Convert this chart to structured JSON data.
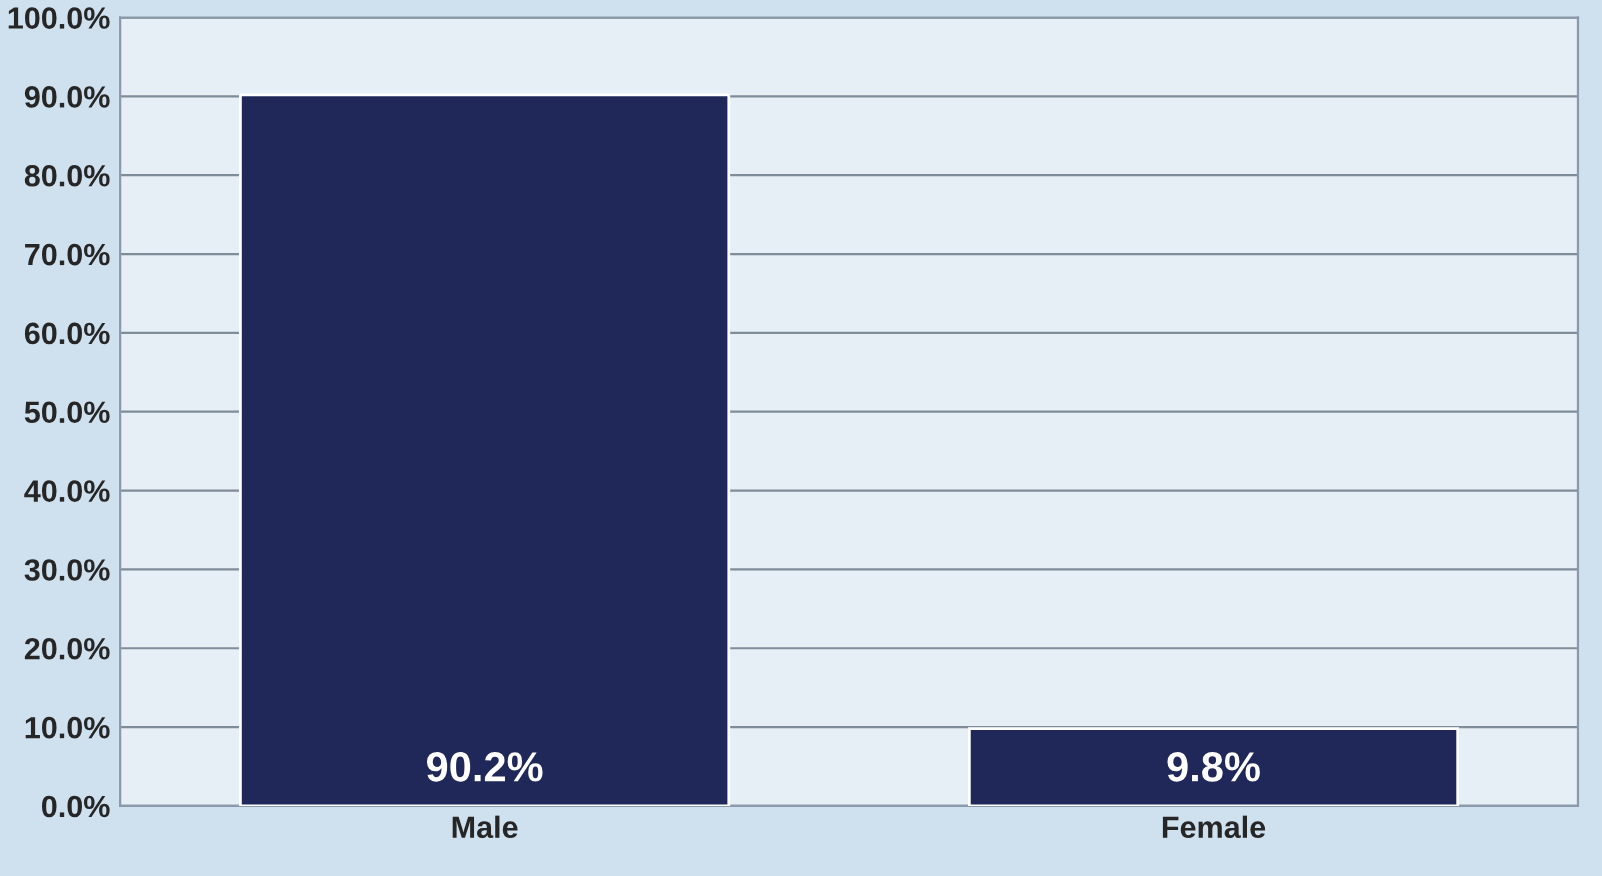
{
  "chart_data": {
    "type": "bar",
    "categories": [
      "Male",
      "Female"
    ],
    "values": [
      90.2,
      9.8
    ],
    "color": "#1f2858",
    "value_labels": [
      "90.2%",
      "9.8%"
    ],
    "ylim": [
      0,
      100
    ],
    "yticks": [
      {
        "value": 0,
        "label": "0.0%"
      },
      {
        "value": 10,
        "label": "10.0%"
      },
      {
        "value": 20,
        "label": "20.0%"
      },
      {
        "value": 30,
        "label": "30.0%"
      },
      {
        "value": 40,
        "label": "40.0%"
      },
      {
        "value": 50,
        "label": "50.0%"
      },
      {
        "value": 60,
        "label": "60.0%"
      },
      {
        "value": 70,
        "label": "70.0%"
      },
      {
        "value": 80,
        "label": "80.0%"
      },
      {
        "value": 90,
        "label": "90.0%"
      },
      {
        "value": 100,
        "label": "100.0%"
      }
    ],
    "grid": "y"
  }
}
